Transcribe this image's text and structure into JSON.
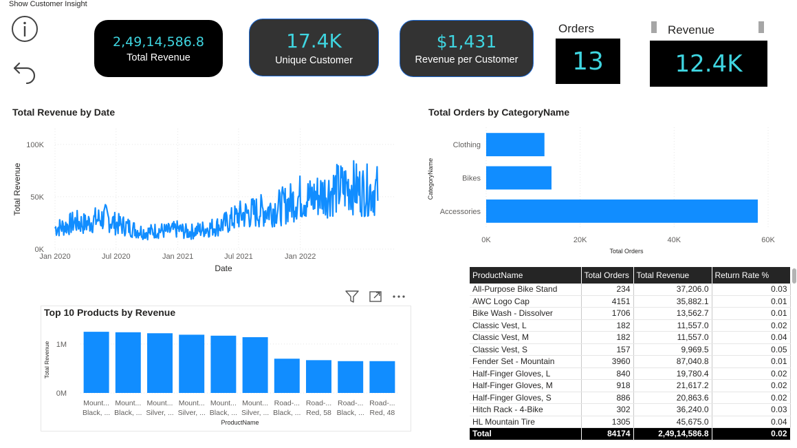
{
  "page": {
    "top_label": "Show Customer Insight",
    "icons": {
      "info": "info-circle-icon",
      "back": "back-arrow-icon"
    }
  },
  "kpis": [
    {
      "value": "2,49,14,586.8",
      "label": "Total Revenue"
    },
    {
      "value": "17.4K",
      "label": "Unique Customer"
    },
    {
      "value": "$1,431",
      "label": "Revenue per Customer"
    }
  ],
  "orders_card": {
    "label": "Orders",
    "value": "13"
  },
  "revenue_card": {
    "label": "Revenue",
    "value": "12.4K"
  },
  "colors": {
    "accent": "#3fd5e0",
    "bar": "#118dff",
    "card_dark": "#333333",
    "card_black": "#000000"
  },
  "line_chart": {
    "title": "Total Revenue by Date",
    "chart_data": {
      "type": "line",
      "title": "Total Revenue by Date",
      "xlabel": "Date",
      "ylabel": "Total Revenue",
      "x_ticks": [
        "Jan 2020",
        "Jul 2020",
        "Jan 2021",
        "Jul 2021",
        "Jan 2022"
      ],
      "y_ticks": [
        "0K",
        "50K",
        "100K"
      ],
      "ylim": [
        0,
        115000
      ],
      "xlim": [
        "2020-01-01",
        "2022-07-01"
      ],
      "grid": true,
      "series": [
        {
          "values": [
            {
              "x": "2020-01-01",
              "y": 20000
            },
            {
              "x": "2020-02-01",
              "y": 22000
            },
            {
              "x": "2020-03-01",
              "y": 26000
            },
            {
              "x": "2020-04-01",
              "y": 24000
            },
            {
              "x": "2020-05-01",
              "y": 28000
            },
            {
              "x": "2020-06-01",
              "y": 30000
            },
            {
              "x": "2020-07-01",
              "y": 24000
            },
            {
              "x": "2020-08-01",
              "y": 22000
            },
            {
              "x": "2020-09-01",
              "y": 18000
            },
            {
              "x": "2020-10-01",
              "y": 16000
            },
            {
              "x": "2020-11-01",
              "y": 18000
            },
            {
              "x": "2020-12-01",
              "y": 17000
            },
            {
              "x": "2021-01-01",
              "y": 19000
            },
            {
              "x": "2021-02-01",
              "y": 16000
            },
            {
              "x": "2021-03-01",
              "y": 18000
            },
            {
              "x": "2021-04-01",
              "y": 20000
            },
            {
              "x": "2021-05-01",
              "y": 22000
            },
            {
              "x": "2021-06-01",
              "y": 26000
            },
            {
              "x": "2021-07-01",
              "y": 32000
            },
            {
              "x": "2021-08-01",
              "y": 34000
            },
            {
              "x": "2021-09-01",
              "y": 36000
            },
            {
              "x": "2021-10-01",
              "y": 38000
            },
            {
              "x": "2021-11-01",
              "y": 40000
            },
            {
              "x": "2021-12-01",
              "y": 44000
            },
            {
              "x": "2022-01-01",
              "y": 50000
            },
            {
              "x": "2022-02-01",
              "y": 48000
            },
            {
              "x": "2022-03-01",
              "y": 52000
            },
            {
              "x": "2022-04-01",
              "y": 55000
            },
            {
              "x": "2022-05-01",
              "y": 58000
            },
            {
              "x": "2022-06-01",
              "y": 60000
            },
            {
              "x": "2022-07-01",
              "y": 56000
            }
          ]
        }
      ]
    }
  },
  "cat_chart": {
    "title": "Total Orders by CategoryName",
    "chart_data": {
      "type": "bar",
      "orientation": "horizontal",
      "title": "Total Orders by CategoryName",
      "xlabel": "Total Orders",
      "ylabel": "CategoryName",
      "categories": [
        "Clothing",
        "Bikes",
        "Accessories"
      ],
      "values": [
        12400,
        13900,
        57800
      ],
      "x_ticks": [
        "0K",
        "20K",
        "40K",
        "60K"
      ],
      "xlim": [
        0,
        60000
      ],
      "grid": true
    }
  },
  "top_products": {
    "title": "Top 10 Products by Revenue",
    "chart_data": {
      "type": "bar",
      "title": "Top 10 Products by Revenue",
      "xlabel": "ProductName",
      "ylabel": "Total Revenue",
      "categories": [
        [
          "Mount...",
          "Black, ..."
        ],
        [
          "Mount...",
          "Black, ..."
        ],
        [
          "Mount...",
          "Silver, ..."
        ],
        [
          "Mount...",
          "Silver, ..."
        ],
        [
          "Mount...",
          "Black, ..."
        ],
        [
          "Mount...",
          "Silver, ..."
        ],
        [
          "Road-...",
          "Black, ..."
        ],
        [
          "Road-...",
          "Red, 58"
        ],
        [
          "Road-...",
          "Black, ..."
        ],
        [
          "Road-...",
          "Red, 48"
        ]
      ],
      "values": [
        1250000,
        1240000,
        1220000,
        1190000,
        1170000,
        1140000,
        700000,
        670000,
        650000,
        650000
      ],
      "y_ticks": [
        "0M",
        "1M"
      ],
      "ylim": [
        0,
        1350000
      ],
      "grid": true
    }
  },
  "visual_header": {
    "icons": [
      "filter-icon",
      "focus-mode-icon",
      "more-options-icon"
    ]
  },
  "table": {
    "columns": [
      "ProductName",
      "Total Orders",
      "Total Revenue",
      "Return Rate %"
    ],
    "rows": [
      [
        "All-Purpose Bike Stand",
        "234",
        "37,206.0",
        "0.03"
      ],
      [
        "AWC Logo Cap",
        "4151",
        "35,882.1",
        "0.01"
      ],
      [
        "Bike Wash - Dissolver",
        "1706",
        "13,562.7",
        "0.01"
      ],
      [
        "Classic Vest, L",
        "182",
        "11,557.0",
        "0.02"
      ],
      [
        "Classic Vest, M",
        "182",
        "11,557.0",
        "0.04"
      ],
      [
        "Classic Vest, S",
        "157",
        "9,969.5",
        "0.05"
      ],
      [
        "Fender Set - Mountain",
        "3960",
        "87,040.8",
        "0.01"
      ],
      [
        "Half-Finger Gloves, L",
        "840",
        "19,780.4",
        "0.02"
      ],
      [
        "Half-Finger Gloves, M",
        "918",
        "21,617.2",
        "0.02"
      ],
      [
        "Half-Finger Gloves, S",
        "886",
        "20,863.6",
        "0.02"
      ],
      [
        "Hitch Rack - 4-Bike",
        "302",
        "36,240.0",
        "0.03"
      ],
      [
        "HL Mountain Tire",
        "1305",
        "45,675.0",
        "0.04"
      ]
    ],
    "total": [
      "Total",
      "84174",
      "2,49,14,586.8",
      "0.02"
    ]
  }
}
